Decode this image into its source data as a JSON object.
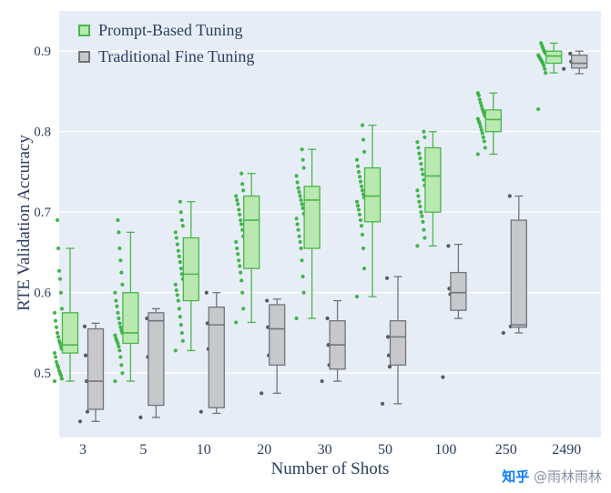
{
  "chart_data": {
    "type": "box",
    "title": "",
    "xlabel": "Number of Shots",
    "ylabel": "RTE Validation Accuracy",
    "categories": [
      "3",
      "5",
      "10",
      "20",
      "30",
      "50",
      "100",
      "250",
      "2490"
    ],
    "yticks": [
      0.5,
      0.6,
      0.7,
      0.8,
      0.9
    ],
    "ylim": [
      0.42,
      0.95
    ],
    "grid": "horizontal-white",
    "legend_position": "top-left-inside",
    "plot_bg": "#e7edf7",
    "text_color": "#2a3f5f",
    "series": [
      {
        "name": "Prompt-Based Tuning",
        "fill": "#b9e9b0",
        "stroke": "#49b649",
        "point_color": "#33b13c",
        "boxes": [
          {
            "low": 0.49,
            "q1": 0.525,
            "med": 0.535,
            "q3": 0.575,
            "high": 0.655,
            "points": [
              0.49,
              0.493,
              0.497,
              0.5,
              0.503,
              0.507,
              0.51,
              0.514,
              0.52,
              0.525,
              0.53,
              0.533,
              0.537,
              0.54,
              0.545,
              0.55,
              0.557,
              0.565,
              0.575,
              0.58,
              0.6,
              0.617,
              0.627,
              0.655,
              0.69
            ]
          },
          {
            "low": 0.49,
            "q1": 0.537,
            "med": 0.55,
            "q3": 0.6,
            "high": 0.675,
            "points": [
              0.49,
              0.5,
              0.51,
              0.52,
              0.528,
              0.533,
              0.537,
              0.54,
              0.543,
              0.547,
              0.55,
              0.553,
              0.557,
              0.562,
              0.568,
              0.575,
              0.583,
              0.59,
              0.6,
              0.61,
              0.625,
              0.64,
              0.655,
              0.675,
              0.69
            ]
          },
          {
            "low": 0.528,
            "q1": 0.59,
            "med": 0.623,
            "q3": 0.668,
            "high": 0.713,
            "points": [
              0.528,
              0.54,
              0.55,
              0.56,
              0.57,
              0.58,
              0.59,
              0.597,
              0.603,
              0.61,
              0.617,
              0.623,
              0.63,
              0.638,
              0.645,
              0.652,
              0.66,
              0.668,
              0.675,
              0.683,
              0.69,
              0.7,
              0.713
            ]
          },
          {
            "low": 0.563,
            "q1": 0.63,
            "med": 0.69,
            "q3": 0.72,
            "high": 0.748,
            "points": [
              0.563,
              0.58,
              0.6,
              0.615,
              0.625,
              0.633,
              0.64,
              0.648,
              0.655,
              0.663,
              0.67,
              0.678,
              0.685,
              0.69,
              0.697,
              0.703,
              0.71,
              0.715,
              0.72,
              0.727,
              0.735,
              0.748
            ]
          },
          {
            "low": 0.568,
            "q1": 0.655,
            "med": 0.715,
            "q3": 0.732,
            "high": 0.778,
            "points": [
              0.568,
              0.6,
              0.62,
              0.64,
              0.655,
              0.663,
              0.67,
              0.678,
              0.685,
              0.692,
              0.698,
              0.705,
              0.71,
              0.715,
              0.72,
              0.725,
              0.73,
              0.737,
              0.745,
              0.755,
              0.765,
              0.778
            ]
          },
          {
            "low": 0.595,
            "q1": 0.688,
            "med": 0.72,
            "q3": 0.755,
            "high": 0.808,
            "points": [
              0.595,
              0.63,
              0.655,
              0.672,
              0.683,
              0.69,
              0.697,
              0.703,
              0.708,
              0.713,
              0.718,
              0.722,
              0.727,
              0.732,
              0.738,
              0.744,
              0.75,
              0.757,
              0.765,
              0.775,
              0.79,
              0.808
            ]
          },
          {
            "low": 0.658,
            "q1": 0.7,
            "med": 0.745,
            "q3": 0.78,
            "high": 0.8,
            "points": [
              0.658,
              0.668,
              0.678,
              0.688,
              0.695,
              0.7,
              0.707,
              0.713,
              0.72,
              0.727,
              0.733,
              0.74,
              0.747,
              0.753,
              0.76,
              0.767,
              0.773,
              0.78,
              0.787,
              0.793,
              0.8
            ]
          },
          {
            "low": 0.772,
            "q1": 0.8,
            "med": 0.815,
            "q3": 0.827,
            "high": 0.848,
            "points": [
              0.772,
              0.78,
              0.788,
              0.793,
              0.798,
              0.802,
              0.806,
              0.81,
              0.813,
              0.816,
              0.819,
              0.822,
              0.825,
              0.828,
              0.832,
              0.836,
              0.84,
              0.845,
              0.848
            ]
          },
          {
            "low": 0.873,
            "q1": 0.885,
            "med": 0.894,
            "q3": 0.9,
            "high": 0.91,
            "points": [
              0.828,
              0.873,
              0.878,
              0.882,
              0.885,
              0.887,
              0.889,
              0.891,
              0.893,
              0.895,
              0.897,
              0.899,
              0.901,
              0.904,
              0.907,
              0.91
            ]
          }
        ]
      },
      {
        "name": "Traditional Fine Tuning",
        "fill": "#c6c8cc",
        "stroke": "#72757c",
        "point_color": "#4a4d55",
        "boxes": [
          {
            "low": 0.44,
            "q1": 0.455,
            "med": 0.49,
            "q3": 0.555,
            "high": 0.562,
            "points": [
              0.44,
              0.452,
              0.49,
              0.522,
              0.558
            ]
          },
          {
            "low": 0.445,
            "q1": 0.46,
            "med": 0.565,
            "q3": 0.575,
            "high": 0.58,
            "points": [
              0.445,
              0.52,
              0.568
            ]
          },
          {
            "low": 0.45,
            "q1": 0.457,
            "med": 0.56,
            "q3": 0.582,
            "high": 0.6,
            "points": [
              0.452,
              0.53,
              0.562,
              0.6
            ]
          },
          {
            "low": 0.475,
            "q1": 0.51,
            "med": 0.555,
            "q3": 0.585,
            "high": 0.592,
            "points": [
              0.475,
              0.522,
              0.557,
              0.59
            ]
          },
          {
            "low": 0.49,
            "q1": 0.505,
            "med": 0.535,
            "q3": 0.565,
            "high": 0.59,
            "points": [
              0.49,
              0.51,
              0.535,
              0.568
            ]
          },
          {
            "low": 0.462,
            "q1": 0.51,
            "med": 0.545,
            "q3": 0.565,
            "high": 0.62,
            "points": [
              0.462,
              0.508,
              0.522,
              0.545,
              0.618
            ]
          },
          {
            "low": 0.568,
            "q1": 0.578,
            "med": 0.6,
            "q3": 0.625,
            "high": 0.66,
            "points": [
              0.495,
              0.598,
              0.605,
              0.658
            ]
          },
          {
            "low": 0.55,
            "q1": 0.557,
            "med": 0.56,
            "q3": 0.69,
            "high": 0.72,
            "points": [
              0.55,
              0.558,
              0.72
            ]
          },
          {
            "low": 0.872,
            "q1": 0.879,
            "med": 0.885,
            "q3": 0.895,
            "high": 0.9,
            "points": [
              0.878,
              0.887,
              0.897
            ]
          }
        ]
      }
    ],
    "watermark": {
      "brand": "知乎",
      "user": "@雨林雨林"
    }
  }
}
